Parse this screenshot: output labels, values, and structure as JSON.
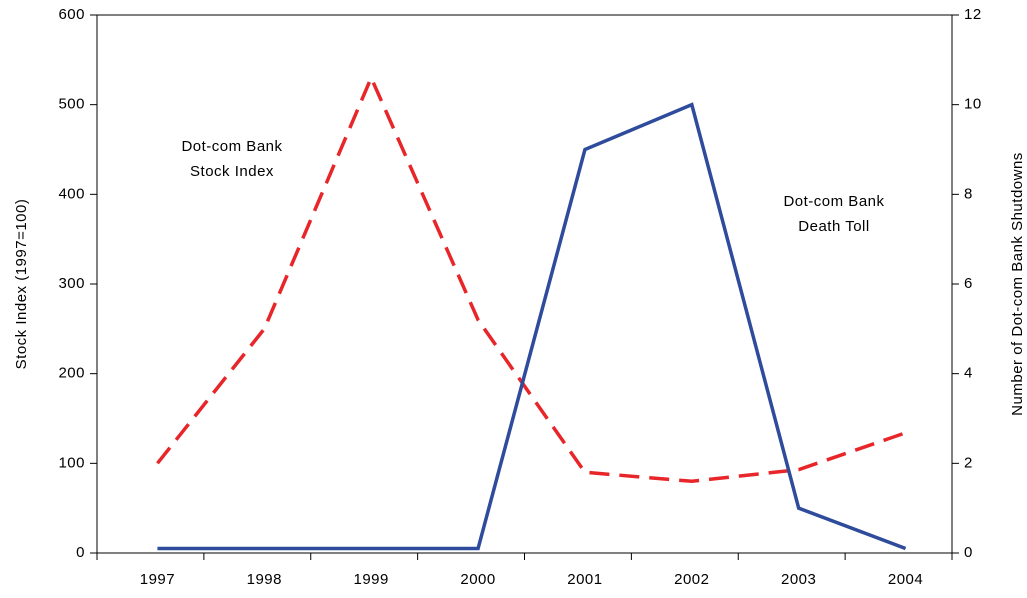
{
  "chart_data": {
    "type": "line",
    "categories": [
      "1997",
      "1998",
      "1999",
      "2000",
      "2001",
      "2002",
      "2003",
      "2004"
    ],
    "series": [
      {
        "color": "#e8262a",
        "dash": true,
        "values": [
          100,
          250,
          530,
          260,
          90,
          80,
          93,
          134
        ]
      },
      {
        "color": "#2e4b9c",
        "dash": false,
        "axis": "y2",
        "values": [
          0.1,
          0.1,
          0.1,
          0.1,
          9,
          10,
          1,
          0.1
        ]
      }
    ],
    "ylabel": "Stock Index (1997=100)",
    "y2label": "Number of Dot-com Bank Shutdowns",
    "ylim": [
      0,
      600
    ],
    "yticks": [
      0,
      100,
      200,
      300,
      400,
      500,
      600
    ],
    "y2lim": [
      0,
      12
    ],
    "y2ticks": [
      0,
      2,
      4,
      6,
      8,
      10,
      12
    ],
    "annotations": [
      {
        "lines": [
          "Dot-com Bank",
          "Stock Index"
        ]
      },
      {
        "lines": [
          "Dot-com Bank",
          "Death Toll"
        ]
      }
    ]
  }
}
